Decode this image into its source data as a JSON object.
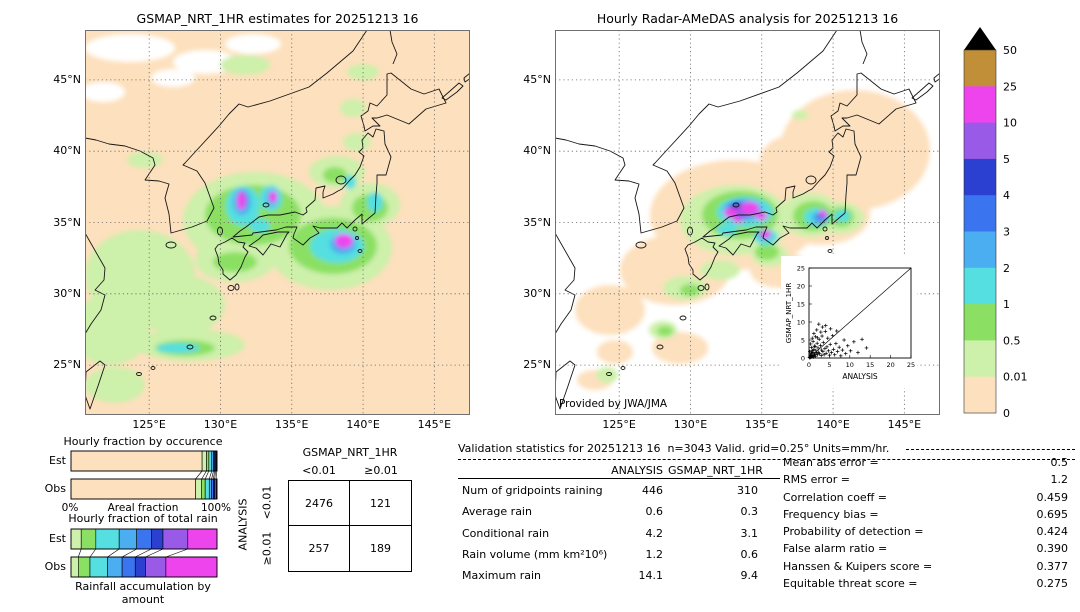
{
  "scale": {
    "levels": [
      "0",
      "0.01",
      "0.5",
      "1",
      "2",
      "3",
      "4",
      "5",
      "10",
      "25",
      "50"
    ],
    "colors": [
      "#fde0bd",
      "#cdf0aa",
      "#8be063",
      "#55dfe0",
      "#4aaef0",
      "#3a74ee",
      "#2b3fd0",
      "#9a5ae8",
      "#ee44ee",
      "#c08f38"
    ],
    "overflow": "#000000",
    "units": "mm/hr"
  },
  "chart_data": [
    {
      "id": "gsmap_map",
      "type": "heatmap",
      "title": "GSMAP_NRT_1HR estimates for 20251213 16",
      "lat_ticks": [
        "45°N",
        "40°N",
        "35°N",
        "30°N",
        "25°N"
      ],
      "lon_ticks": [
        "125°E",
        "130°E",
        "135°E",
        "140°E",
        "145°E"
      ],
      "lat_values": [
        45,
        40,
        35,
        30,
        25
      ],
      "lon_values": [
        125,
        130,
        135,
        140,
        145
      ],
      "base_color": "#fde0bd",
      "blobs": [
        [
          45,
          18,
          45,
          14,
          -1
        ],
        [
          120,
          32,
          32,
          12,
          -1
        ],
        [
          168,
          14,
          28,
          10,
          -1
        ],
        [
          88,
          48,
          22,
          9,
          -1
        ],
        [
          18,
          62,
          22,
          10,
          -1
        ],
        [
          160,
          35,
          25,
          10,
          1
        ],
        [
          278,
          42,
          16,
          8,
          1
        ],
        [
          268,
          78,
          13,
          9,
          1
        ],
        [
          272,
          112,
          14,
          9,
          1
        ],
        [
          128,
          163,
          12,
          8,
          1
        ],
        [
          60,
          130,
          18,
          8,
          1
        ],
        [
          55,
          245,
          55,
          45,
          1
        ],
        [
          25,
          300,
          40,
          35,
          1
        ],
        [
          95,
          275,
          45,
          30,
          1
        ],
        [
          150,
          230,
          40,
          22,
          1
        ],
        [
          105,
          315,
          55,
          16,
          1
        ],
        [
          30,
          355,
          30,
          18,
          1
        ],
        [
          170,
          190,
          72,
          48,
          1
        ],
        [
          252,
          142,
          28,
          16,
          1
        ],
        [
          245,
          218,
          62,
          42,
          1
        ],
        [
          285,
          175,
          30,
          22,
          1
        ],
        [
          168,
          185,
          48,
          30,
          2
        ],
        [
          248,
          216,
          44,
          28,
          2
        ],
        [
          100,
          318,
          30,
          8,
          2
        ],
        [
          150,
          232,
          22,
          10,
          2
        ],
        [
          285,
          178,
          18,
          14,
          2
        ],
        [
          250,
          145,
          12,
          8,
          2
        ],
        [
          158,
          176,
          17,
          20,
          3
        ],
        [
          186,
          168,
          11,
          13,
          3
        ],
        [
          252,
          216,
          27,
          17,
          3
        ],
        [
          290,
          172,
          8,
          10,
          3
        ],
        [
          93,
          318,
          22,
          5,
          3
        ],
        [
          175,
          196,
          10,
          7,
          3
        ],
        [
          265,
          152,
          6,
          7,
          3
        ],
        [
          157,
          172,
          9,
          13,
          4
        ],
        [
          258,
          214,
          13,
          10,
          4
        ],
        [
          187,
          168,
          6,
          8,
          4
        ],
        [
          258,
          212,
          8,
          7,
          5
        ],
        [
          157,
          170,
          5,
          9,
          7
        ],
        [
          156,
          171,
          4,
          9,
          8
        ],
        [
          188,
          167,
          4,
          6,
          8
        ],
        [
          259,
          211,
          9,
          7,
          8
        ]
      ]
    },
    {
      "id": "radar_map",
      "type": "heatmap",
      "title": "Hourly Radar-AMeDAS analysis for 20251213 16",
      "credit": "Provided by JWA/JMA",
      "lat_ticks": [
        "45°N",
        "40°N",
        "35°N",
        "30°N",
        "25°N"
      ],
      "lon_ticks": [
        "125°E",
        "130°E",
        "135°E",
        "140°E",
        "145°E"
      ],
      "lat_values": [
        45,
        40,
        35,
        30,
        25
      ],
      "lon_values": [
        125,
        130,
        135,
        140,
        145
      ],
      "base_color": "#ffffff",
      "blobs": [
        [
          300,
          120,
          75,
          60,
          0
        ],
        [
          180,
          185,
          85,
          55,
          0
        ],
        [
          265,
          185,
          50,
          30,
          0
        ],
        [
          120,
          240,
          55,
          35,
          0
        ],
        [
          55,
          280,
          35,
          25,
          0
        ],
        [
          225,
          240,
          30,
          18,
          0
        ],
        [
          125,
          318,
          28,
          16,
          0
        ],
        [
          60,
          322,
          18,
          12,
          0
        ],
        [
          40,
          350,
          18,
          10,
          0
        ],
        [
          240,
          130,
          35,
          25,
          0
        ],
        [
          180,
          190,
          55,
          35,
          1
        ],
        [
          255,
          185,
          30,
          22,
          1
        ],
        [
          285,
          188,
          24,
          16,
          1
        ],
        [
          130,
          258,
          22,
          12,
          1
        ],
        [
          108,
          300,
          14,
          9,
          1
        ],
        [
          52,
          345,
          11,
          8,
          1
        ],
        [
          245,
          85,
          8,
          5,
          1
        ],
        [
          215,
          225,
          18,
          12,
          1
        ],
        [
          165,
          240,
          20,
          10,
          1
        ],
        [
          185,
          185,
          38,
          24,
          2
        ],
        [
          258,
          186,
          20,
          15,
          2
        ],
        [
          286,
          187,
          13,
          10,
          2
        ],
        [
          110,
          301,
          8,
          5,
          2
        ],
        [
          212,
          222,
          12,
          8,
          2
        ],
        [
          135,
          260,
          10,
          6,
          2
        ],
        [
          190,
          182,
          28,
          15,
          3
        ],
        [
          262,
          187,
          13,
          9,
          3
        ],
        [
          287,
          186,
          8,
          6,
          3
        ],
        [
          211,
          207,
          12,
          8,
          3
        ],
        [
          172,
          200,
          10,
          6,
          3
        ],
        [
          188,
          180,
          20,
          11,
          4
        ],
        [
          265,
          188,
          8,
          6,
          4
        ],
        [
          210,
          205,
          7,
          5,
          4
        ],
        [
          186,
          180,
          14,
          8,
          5
        ],
        [
          266,
          186,
          5,
          4,
          5
        ],
        [
          183,
          179,
          9,
          6,
          6
        ],
        [
          192,
          180,
          10,
          7,
          7
        ],
        [
          268,
          184,
          4,
          4,
          7
        ],
        [
          210,
          204,
          5,
          4,
          7
        ],
        [
          176,
          183,
          7,
          5,
          8
        ],
        [
          195,
          178,
          9,
          6,
          8
        ],
        [
          206,
          186,
          6,
          4,
          8
        ],
        [
          211,
          204,
          5,
          4,
          8
        ],
        [
          268,
          183,
          4,
          3,
          8
        ],
        [
          183,
          190,
          5,
          3,
          8
        ]
      ]
    },
    {
      "id": "inset_scatter",
      "type": "scatter",
      "xlabel": "ANALYSIS",
      "ylabel": "GSMAP_NRT_1HR",
      "ticks": [
        "0",
        "5",
        "10",
        "15",
        "20",
        "25"
      ],
      "xlim": [
        0,
        25
      ],
      "ylim": [
        0,
        25
      ],
      "one_to_one_line": true,
      "points": [
        [
          0.1,
          0.2
        ],
        [
          0.2,
          0.1
        ],
        [
          0.3,
          0.5
        ],
        [
          0.4,
          0.2
        ],
        [
          0.5,
          0.8
        ],
        [
          0.5,
          0.3
        ],
        [
          0.6,
          1.2
        ],
        [
          0.7,
          0.4
        ],
        [
          0.8,
          2.1
        ],
        [
          0.9,
          0.6
        ],
        [
          1,
          1.5
        ],
        [
          1.1,
          0.3
        ],
        [
          1.2,
          2.4
        ],
        [
          1.3,
          0.8
        ],
        [
          1.4,
          1.1
        ],
        [
          1.5,
          3.2
        ],
        [
          1.6,
          0.5
        ],
        [
          1.7,
          2
        ],
        [
          1.8,
          1.4
        ],
        [
          2,
          4.1
        ],
        [
          2.1,
          0.9
        ],
        [
          2.2,
          2.8
        ],
        [
          2.3,
          1.6
        ],
        [
          2.5,
          5.2
        ],
        [
          2.6,
          1.2
        ],
        [
          2.8,
          3.5
        ],
        [
          3,
          0.7
        ],
        [
          3.1,
          2.2
        ],
        [
          3.2,
          6.1
        ],
        [
          3.4,
          1.8
        ],
        [
          3.5,
          4.3
        ],
        [
          3.7,
          0.9
        ],
        [
          3.9,
          2.6
        ],
        [
          4,
          7.4
        ],
        [
          4.2,
          1.3
        ],
        [
          4.4,
          3.1
        ],
        [
          4.6,
          5.5
        ],
        [
          4.8,
          2
        ],
        [
          5,
          0.8
        ],
        [
          5.2,
          3.8
        ],
        [
          5.5,
          1.5
        ],
        [
          5.8,
          6.2
        ],
        [
          6,
          2.4
        ],
        [
          6.3,
          0.9
        ],
        [
          6.6,
          4
        ],
        [
          7,
          1.8
        ],
        [
          7.4,
          3
        ],
        [
          7.8,
          0.6
        ],
        [
          8.2,
          2.2
        ],
        [
          8.6,
          5
        ],
        [
          9,
          1.2
        ],
        [
          9.5,
          3.4
        ],
        [
          10.2,
          2
        ],
        [
          11,
          4.5
        ],
        [
          12,
          1.5
        ],
        [
          13,
          5.2
        ],
        [
          14.1,
          2.8
        ],
        [
          2.4,
          9.4
        ],
        [
          1.9,
          7.8
        ],
        [
          3.3,
          8.6
        ],
        [
          0.8,
          5.5
        ],
        [
          1.2,
          6.8
        ],
        [
          0.4,
          3.9
        ],
        [
          2.9,
          7.2
        ],
        [
          0.2,
          1.8
        ],
        [
          0.6,
          2.9
        ],
        [
          1,
          4.6
        ],
        [
          1.6,
          5.9
        ],
        [
          0.3,
          0.9
        ],
        [
          0.7,
          1.6
        ],
        [
          1.3,
          3.3
        ],
        [
          2.1,
          5.6
        ],
        [
          4.1,
          9
        ],
        [
          5.3,
          8.1
        ],
        [
          6.8,
          7.5
        ]
      ]
    },
    {
      "id": "occurrence",
      "type": "bar",
      "subtype": "stacked_horizontal",
      "title": "Hourly fraction by occurence",
      "rows": [
        "Est",
        "Obs"
      ],
      "x_left_label": "0%",
      "x_mid_label": "Areal fraction",
      "x_right_label": "100%",
      "bins": [
        "0",
        "0.01",
        "0.5",
        "1",
        "2",
        "3",
        "4",
        "5",
        "10"
      ],
      "color_start_index": 0,
      "est": [
        0.898,
        0.03,
        0.016,
        0.02,
        0.012,
        0.008,
        0.006,
        0.006,
        0.004
      ],
      "obs": [
        0.853,
        0.042,
        0.024,
        0.028,
        0.016,
        0.012,
        0.009,
        0.01,
        0.006
      ]
    },
    {
      "id": "total_rain",
      "type": "bar",
      "subtype": "stacked_horizontal",
      "title": "Hourly fraction of total rain",
      "caption": "Rainfall accumulation by amount",
      "rows": [
        "Est",
        "Obs"
      ],
      "bins": [
        "0.01",
        "0.5",
        "1",
        "2",
        "3",
        "4",
        "5",
        "10"
      ],
      "color_start_index": 1,
      "est": [
        0.07,
        0.1,
        0.16,
        0.12,
        0.1,
        0.08,
        0.17,
        0.2
      ],
      "obs": [
        0.05,
        0.08,
        0.12,
        0.1,
        0.09,
        0.07,
        0.14,
        0.35
      ]
    },
    {
      "id": "contingency",
      "type": "table",
      "col_header": "GSMAP_NRT_1HR",
      "row_header": "ANALYSIS",
      "col_labels": [
        "<0.01",
        "≥0.01"
      ],
      "row_labels": [
        "<0.01",
        "≥0.01"
      ],
      "values": [
        [
          "2476",
          "121"
        ],
        [
          "257",
          "189"
        ]
      ]
    },
    {
      "id": "validation",
      "type": "table",
      "title": "Validation statistics for 20251213 16  n=3043 Valid. grid=0.25° Units=mm/hr.",
      "col_headers": [
        "ANALYSIS",
        "GSMAP_NRT_1HR"
      ],
      "rows": [
        [
          "Num of gridpoints raining",
          "446",
          "310"
        ],
        [
          "Average rain",
          "0.6",
          "0.3"
        ],
        [
          "Conditional rain",
          "4.2",
          "3.1"
        ],
        [
          "Rain volume (mm km²10⁶)",
          "1.2",
          "0.6"
        ],
        [
          "Maximum rain",
          "14.1",
          "9.4"
        ]
      ],
      "scores": [
        [
          "Mean abs error =",
          "0.5"
        ],
        [
          "RMS error =",
          "1.2"
        ],
        [
          "Correlation coeff =",
          "0.459"
        ],
        [
          "Frequency bias =",
          "0.695"
        ],
        [
          "Probability of detection =",
          "0.424"
        ],
        [
          "False alarm ratio =",
          "0.390"
        ],
        [
          "Hanssen & Kuipers score =",
          "0.377"
        ],
        [
          "Equitable threat score =",
          "0.275"
        ]
      ]
    }
  ]
}
